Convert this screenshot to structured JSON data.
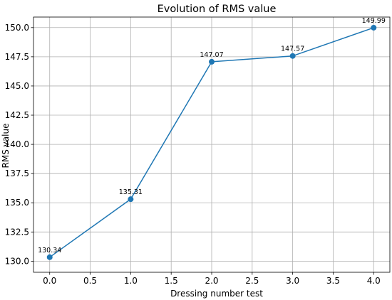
{
  "chart_data": {
    "type": "line",
    "title": "Evolution of RMS value",
    "xlabel": "Dressing number test",
    "ylabel": "RMS value",
    "xlim": [
      -0.2,
      4.2
    ],
    "ylim": [
      129.05,
      150.9
    ],
    "grid": true,
    "x_ticks": [
      0.0,
      0.5,
      1.0,
      1.5,
      2.0,
      2.5,
      3.0,
      3.5,
      4.0
    ],
    "x_tick_labels": [
      "0.0",
      "0.5",
      "1.0",
      "1.5",
      "2.0",
      "2.5",
      "3.0",
      "3.5",
      "4.0"
    ],
    "y_ticks": [
      130.0,
      132.5,
      135.0,
      137.5,
      140.0,
      142.5,
      145.0,
      147.5,
      150.0
    ],
    "y_tick_labels": [
      "130.0",
      "132.5",
      "135.0",
      "137.5",
      "140.0",
      "142.5",
      "145.0",
      "147.5",
      "150.0"
    ],
    "series": [
      {
        "x": [
          0,
          1,
          2,
          3,
          4
        ],
        "values": [
          130.34,
          135.31,
          147.07,
          147.57,
          149.99
        ],
        "labels": [
          "130.34",
          "135.31",
          "147.07",
          "147.57",
          "149.99"
        ],
        "color": "#1f77b4"
      }
    ]
  }
}
